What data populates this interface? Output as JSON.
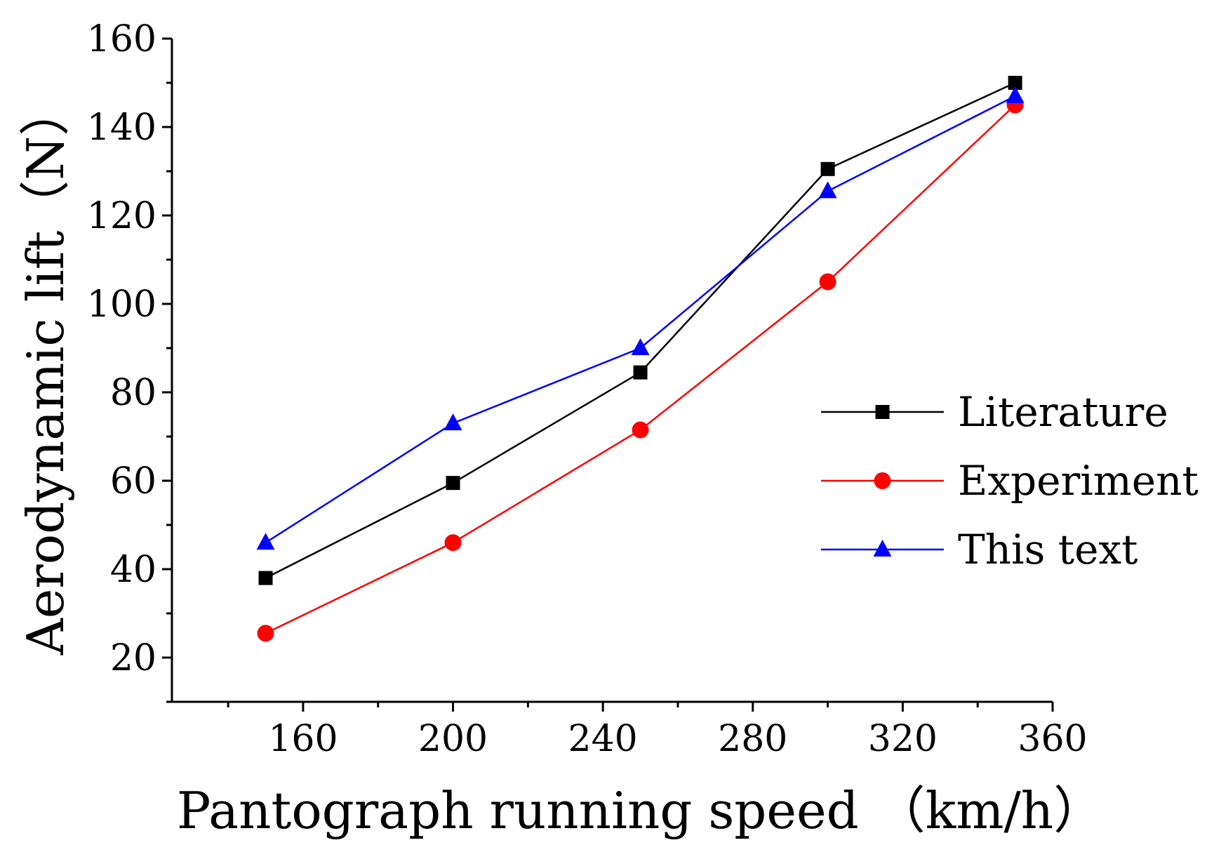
{
  "chart_data": {
    "type": "line",
    "title": "",
    "xlabel": "Pantograph running speed （km/h）",
    "ylabel": "Aerodynamic lift（N）",
    "xlim": [
      125,
      360
    ],
    "ylim": [
      10,
      160
    ],
    "xticks": [
      160,
      200,
      240,
      280,
      320,
      360
    ],
    "yticks": [
      20,
      40,
      60,
      80,
      100,
      120,
      140,
      160
    ],
    "x_minor_ticks": [
      140,
      180,
      220,
      260,
      300,
      340
    ],
    "y_minor_ticks": [
      10,
      30,
      50,
      70,
      90,
      110,
      130,
      150
    ],
    "legend_position": "right",
    "series": [
      {
        "name": "Literature",
        "color": "#000000",
        "marker": "square",
        "x": [
          150,
          200,
          250,
          300,
          350
        ],
        "y": [
          38,
          59.5,
          84.5,
          130.5,
          150
        ]
      },
      {
        "name": "Experiment",
        "color": "#ff0000",
        "marker": "circle",
        "x": [
          150,
          200,
          250,
          300,
          350
        ],
        "y": [
          25.5,
          46,
          71.5,
          105,
          145
        ]
      },
      {
        "name": "This text",
        "color": "#0000ff",
        "marker": "triangle",
        "x": [
          150,
          200,
          250,
          300,
          350
        ],
        "y": [
          46,
          73,
          90,
          125.5,
          147
        ]
      }
    ]
  }
}
